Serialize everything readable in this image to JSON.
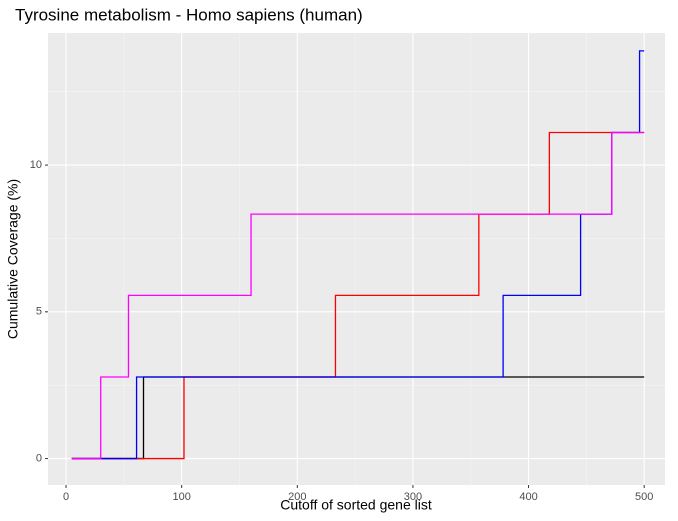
{
  "chart_data": {
    "type": "line",
    "title": "Tyrosine metabolism - Homo sapiens (human)",
    "x_label": "Cutoff of sorted gene list",
    "y_label": "Cumulative Coverage (%)",
    "xlim": [
      -15.6,
      518
    ],
    "ylim": [
      -0.9,
      14.5
    ],
    "xticks": [
      0,
      100,
      200,
      300,
      400,
      500
    ],
    "yticks": [
      0,
      5,
      10
    ],
    "grid": true,
    "minor_grid": true,
    "series": [
      {
        "color": "#000000",
        "x": [
          5,
          67,
          67,
          500
        ],
        "values": [
          0,
          0,
          2.78,
          2.78
        ]
      },
      {
        "color": "#ff0000",
        "x": [
          5,
          102,
          102,
          233,
          233,
          357,
          357,
          418,
          418,
          500
        ],
        "values": [
          0,
          0,
          2.78,
          2.78,
          5.56,
          5.56,
          8.33,
          8.33,
          11.11,
          11.11
        ]
      },
      {
        "color": "#0000ff",
        "x": [
          5,
          61,
          61,
          378,
          378,
          445,
          445,
          472,
          472,
          496,
          496,
          500
        ],
        "values": [
          0,
          0,
          2.78,
          2.78,
          5.56,
          5.56,
          8.33,
          8.33,
          11.11,
          11.11,
          13.89,
          13.89
        ]
      },
      {
        "color": "#ff00ff",
        "x": [
          5,
          30,
          30,
          54,
          54,
          160,
          160,
          472,
          472,
          500
        ],
        "values": [
          0,
          0,
          2.78,
          2.78,
          5.56,
          5.56,
          8.33,
          8.33,
          11.11,
          11.11
        ]
      }
    ]
  }
}
